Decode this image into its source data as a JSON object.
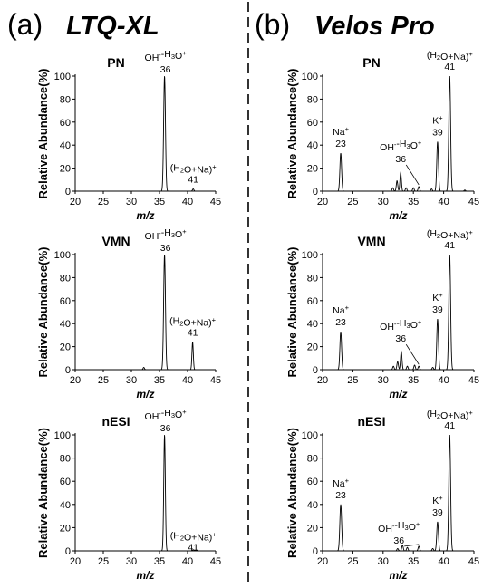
{
  "headings": {
    "left": {
      "letter": "(a)",
      "name": "LTQ-XL"
    },
    "right": {
      "letter": "(b)",
      "name": "Velos Pro"
    }
  },
  "chart_data": [
    {
      "type": "line",
      "column": "left",
      "title": "PN",
      "xlabel": "m/z",
      "ylabel": "Relative Abundance(%)",
      "xlim": [
        20,
        45
      ],
      "ylim": [
        0,
        100
      ],
      "xticks": [
        "20",
        "25",
        "30",
        "35",
        "40",
        "45"
      ],
      "yticks": [
        "0",
        "20",
        "40",
        "60",
        "80",
        "100"
      ],
      "peaks": [
        {
          "x": 35.9,
          "y": 100,
          "w": 0.16,
          "label": [
            "OH",
            "-",
            "-H",
            "3",
            "O",
            "+"
          ],
          "num": "36"
        },
        {
          "x": 41.0,
          "y": 2,
          "w": 0.12,
          "label": [
            "(H",
            "2",
            "O+Na)",
            "+"
          ],
          "num": "41"
        }
      ],
      "noise": []
    },
    {
      "type": "line",
      "column": "left",
      "title": "VMN",
      "xlabel": "m/z",
      "ylabel": "Relative Abundance(%)",
      "xlim": [
        20,
        45
      ],
      "ylim": [
        0,
        100
      ],
      "xticks": [
        "20",
        "25",
        "30",
        "35",
        "40",
        "45"
      ],
      "yticks": [
        "0",
        "20",
        "40",
        "60",
        "80",
        "100"
      ],
      "peaks": [
        {
          "x": 35.9,
          "y": 100,
          "w": 0.16,
          "label": [
            "OH",
            "-",
            "-H",
            "3",
            "O",
            "+"
          ],
          "num": "36"
        },
        {
          "x": 40.9,
          "y": 24,
          "w": 0.12,
          "label": [
            "(H",
            "2",
            "O+Na)",
            "+"
          ],
          "num": "41"
        }
      ],
      "noise": [
        {
          "x": 32.2,
          "y": 2,
          "w": 0.12
        }
      ]
    },
    {
      "type": "line",
      "column": "left",
      "title": "nESI",
      "xlabel": "m/z",
      "ylabel": "Relative Abundance(%)",
      "xlim": [
        20,
        45
      ],
      "ylim": [
        0,
        100
      ],
      "xticks": [
        "20",
        "25",
        "30",
        "35",
        "40",
        "45"
      ],
      "yticks": [
        "0",
        "20",
        "40",
        "60",
        "80",
        "100"
      ],
      "peaks": [
        {
          "x": 35.9,
          "y": 100,
          "w": 0.14,
          "label": [
            "OH",
            "-",
            "-H",
            "3",
            "O",
            "+"
          ],
          "num": "36"
        },
        {
          "x": 41.0,
          "y": 1,
          "w": 0.12,
          "label": [
            "(H",
            "2",
            "O+Na)",
            "+"
          ],
          "num": "41"
        }
      ],
      "noise": []
    },
    {
      "type": "line",
      "column": "right",
      "title": "PN",
      "xlabel": "m/z",
      "ylabel": "Relative Abundance(%)",
      "xlim": [
        20,
        45
      ],
      "ylim": [
        0,
        100
      ],
      "xticks": [
        "20",
        "25",
        "30",
        "35",
        "40",
        "45"
      ],
      "yticks": [
        "0",
        "20",
        "40",
        "60",
        "80",
        "100"
      ],
      "peaks": [
        {
          "x": 23.0,
          "y": 33,
          "w": 0.14,
          "label": [
            "Na",
            "+"
          ],
          "num": "23"
        },
        {
          "x": 35.9,
          "y": 4,
          "w": 0.12,
          "label": [
            "OH",
            "-",
            "-H",
            "3",
            "O",
            "+"
          ],
          "num": "36"
        },
        {
          "x": 39.0,
          "y": 43,
          "w": 0.14,
          "label": [
            "K",
            "+"
          ],
          "num": "39"
        },
        {
          "x": 41.0,
          "y": 100,
          "w": 0.15,
          "label": [
            "(H",
            "2",
            "O+Na)",
            "+"
          ],
          "num": "41"
        }
      ],
      "noise": [
        {
          "x": 31.6,
          "y": 3,
          "w": 0.12
        },
        {
          "x": 32.3,
          "y": 9,
          "w": 0.12
        },
        {
          "x": 32.9,
          "y": 16,
          "w": 0.12
        },
        {
          "x": 33.8,
          "y": 3,
          "w": 0.12
        },
        {
          "x": 35.0,
          "y": 3,
          "w": 0.12
        },
        {
          "x": 38.0,
          "y": 2,
          "w": 0.12
        },
        {
          "x": 43.5,
          "y": 1,
          "w": 0.12
        }
      ]
    },
    {
      "type": "line",
      "column": "right",
      "title": "VMN",
      "xlabel": "m/z",
      "ylabel": "Relative Abundance(%)",
      "xlim": [
        20,
        45
      ],
      "ylim": [
        0,
        100
      ],
      "xticks": [
        "20",
        "25",
        "30",
        "35",
        "40",
        "45"
      ],
      "yticks": [
        "0",
        "20",
        "40",
        "60",
        "80",
        "100"
      ],
      "peaks": [
        {
          "x": 23.0,
          "y": 33,
          "w": 0.14,
          "label": [
            "Na",
            "+"
          ],
          "num": "23"
        },
        {
          "x": 35.9,
          "y": 3,
          "w": 0.12,
          "label": [
            "OH",
            "-",
            "-H",
            "3",
            "O",
            "+"
          ],
          "num": "36"
        },
        {
          "x": 39.0,
          "y": 44,
          "w": 0.14,
          "label": [
            "K",
            "+"
          ],
          "num": "39"
        },
        {
          "x": 41.0,
          "y": 100,
          "w": 0.15,
          "label": [
            "(H",
            "2",
            "O+Na)",
            "+"
          ],
          "num": "41"
        }
      ],
      "noise": [
        {
          "x": 31.7,
          "y": 3,
          "w": 0.12
        },
        {
          "x": 32.4,
          "y": 7,
          "w": 0.12
        },
        {
          "x": 33.0,
          "y": 16,
          "w": 0.12
        },
        {
          "x": 34.0,
          "y": 3,
          "w": 0.12
        },
        {
          "x": 35.2,
          "y": 4,
          "w": 0.12
        },
        {
          "x": 38.2,
          "y": 2,
          "w": 0.12
        }
      ]
    },
    {
      "type": "line",
      "column": "right",
      "title": "nESI",
      "xlabel": "m/z",
      "ylabel": "Relative Abundance(%)",
      "xlim": [
        20,
        45
      ],
      "ylim": [
        0,
        100
      ],
      "xticks": [
        "20",
        "25",
        "30",
        "35",
        "40",
        "45"
      ],
      "yticks": [
        "0",
        "20",
        "40",
        "60",
        "80",
        "100"
      ],
      "peaks": [
        {
          "x": 23.0,
          "y": 40,
          "w": 0.15,
          "label": [
            "Na",
            "+"
          ],
          "num": "23"
        },
        {
          "x": 35.9,
          "y": 4,
          "w": 0.12,
          "label": [
            "OH",
            "-",
            "-H",
            "3",
            "O",
            "+"
          ],
          "num": "36"
        },
        {
          "x": 39.0,
          "y": 25,
          "w": 0.14,
          "label": [
            "K",
            "+"
          ],
          "num": "39"
        },
        {
          "x": 41.0,
          "y": 100,
          "w": 0.15,
          "label": [
            "(H",
            "2",
            "O+Na)",
            "+"
          ],
          "num": "41"
        }
      ],
      "noise": [
        {
          "x": 32.4,
          "y": 2,
          "w": 0.12
        },
        {
          "x": 33.2,
          "y": 5,
          "w": 0.12
        },
        {
          "x": 34.0,
          "y": 3,
          "w": 0.12
        },
        {
          "x": 38.2,
          "y": 2,
          "w": 0.12
        }
      ]
    }
  ]
}
